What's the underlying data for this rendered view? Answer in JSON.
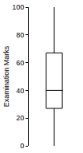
{
  "chart_data": {
    "type": "box",
    "y_label": "Examination Marks",
    "stats": {
      "min": 0,
      "q1": 27,
      "median": 40,
      "q3": 67,
      "max": 100
    },
    "color": "#000000",
    "ylim": [
      0,
      100
    ],
    "yticks": [
      0,
      20,
      40,
      60,
      80,
      100
    ],
    "grid": false,
    "tick_labels": "y"
  }
}
